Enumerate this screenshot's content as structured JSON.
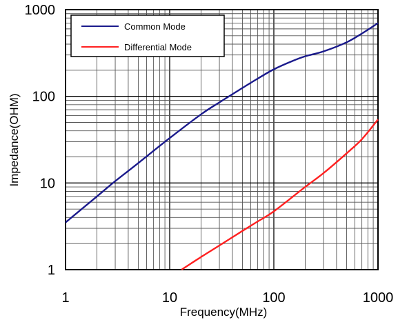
{
  "chart_data": {
    "type": "line",
    "xlabel": "Frequency(MHz)",
    "ylabel": "Impedance(OHM)",
    "xscale": "log",
    "yscale": "log",
    "xlim": [
      1,
      1000
    ],
    "ylim": [
      1,
      1000
    ],
    "xticks": [
      "1",
      "10",
      "100",
      "1000"
    ],
    "yticks": [
      "1",
      "10",
      "100",
      "1000"
    ],
    "grid": true,
    "legend_position": "top-left",
    "series": [
      {
        "name": "Common Mode",
        "color": "#1a1a8c",
        "x": [
          1,
          2,
          3,
          5,
          10,
          20,
          30,
          50,
          70,
          100,
          150,
          200,
          300,
          500,
          700,
          1000
        ],
        "y": [
          3.5,
          7,
          10.5,
          17,
          33,
          62,
          85,
          125,
          160,
          205,
          255,
          290,
          330,
          420,
          530,
          700
        ]
      },
      {
        "name": "Differential Mode",
        "color": "#ff2020",
        "x": [
          13,
          20,
          30,
          50,
          70,
          100,
          200,
          300,
          500,
          700,
          1000
        ],
        "y": [
          1,
          1.4,
          1.9,
          2.8,
          3.6,
          4.7,
          9,
          13,
          22,
          32,
          54
        ]
      }
    ]
  }
}
